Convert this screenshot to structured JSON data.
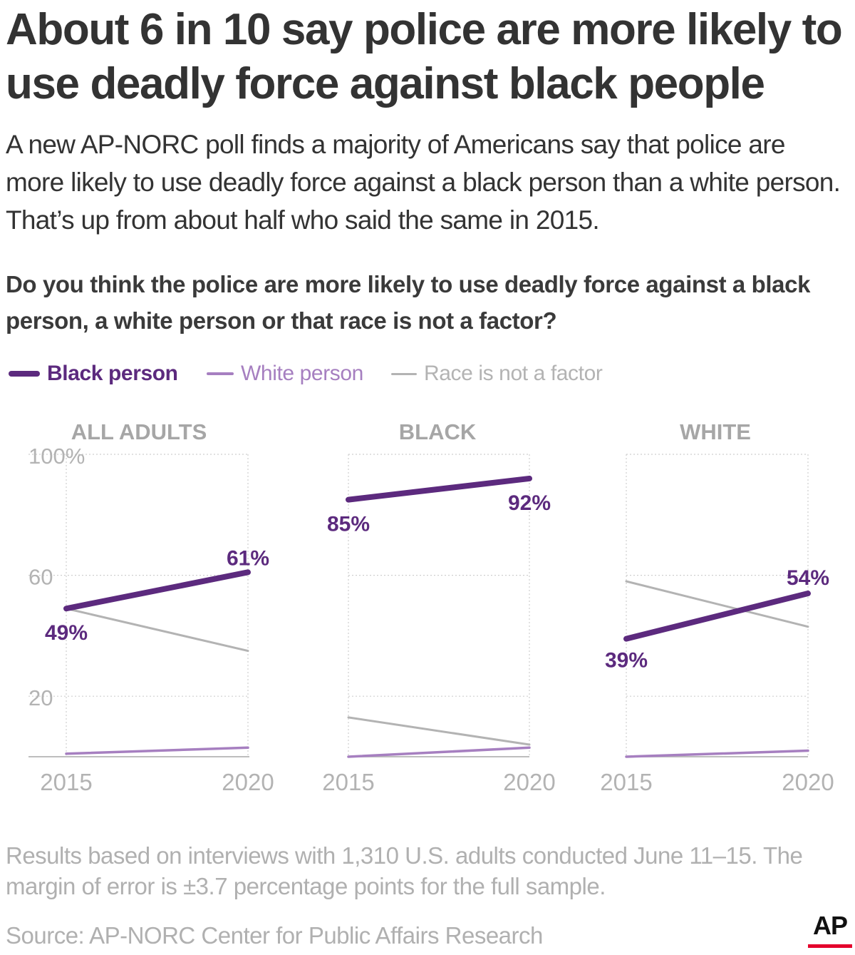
{
  "title": "About 6 in 10 say police are more likely to use deadly force against black people",
  "subtitle": "A new AP-NORC poll finds a majority of Americans say that police are more likely to use deadly force against a black person than a white person. That’s up from about half who said the same in 2015.",
  "question": "Do you think the police are more likely to use deadly force against a black person, a white person or that race is not a factor?",
  "notes": "Results based on interviews with 1,310 U.S. adults conducted June 11–15. The margin of error is ±3.7 percentage points for the full sample.",
  "source": "Source: AP-NORC Center for Public Affairs Research",
  "logo": "AP",
  "colors": {
    "black_person": "#5c2a7e",
    "white_person": "#a67fc0",
    "race_not_factor": "#b3b3b3",
    "axis_text": "#b3b3b3",
    "panel_title": "#a6a6a6",
    "logo_accent": "#e4002b"
  },
  "chart_data": {
    "type": "line",
    "x": [
      2015,
      2020
    ],
    "ylim": [
      0,
      100
    ],
    "y_ticks": [
      "100%",
      "60",
      "20"
    ],
    "y_tick_values": [
      100,
      60,
      20
    ],
    "legend": {
      "placement": "top-left",
      "entries": [
        "Black person",
        "White person",
        "Race is not a factor"
      ]
    },
    "panels": [
      {
        "title": "ALL ADULTS",
        "series": [
          {
            "name": "Black person",
            "values": [
              49,
              61
            ],
            "labels": [
              "49%",
              "61%"
            ]
          },
          {
            "name": "White person",
            "values": [
              1,
              3
            ]
          },
          {
            "name": "Race is not a factor",
            "values": [
              49,
              35
            ]
          }
        ]
      },
      {
        "title": "BLACK",
        "series": [
          {
            "name": "Black person",
            "values": [
              85,
              92
            ],
            "labels": [
              "85%",
              "92%"
            ]
          },
          {
            "name": "White person",
            "values": [
              0,
              3
            ]
          },
          {
            "name": "Race is not a factor",
            "values": [
              13,
              4
            ]
          }
        ]
      },
      {
        "title": "WHITE",
        "series": [
          {
            "name": "Black person",
            "values": [
              39,
              54
            ],
            "labels": [
              "39%",
              "54%"
            ]
          },
          {
            "name": "White person",
            "values": [
              0,
              2
            ]
          },
          {
            "name": "Race is not a factor",
            "values": [
              58,
              43
            ]
          }
        ]
      }
    ]
  }
}
